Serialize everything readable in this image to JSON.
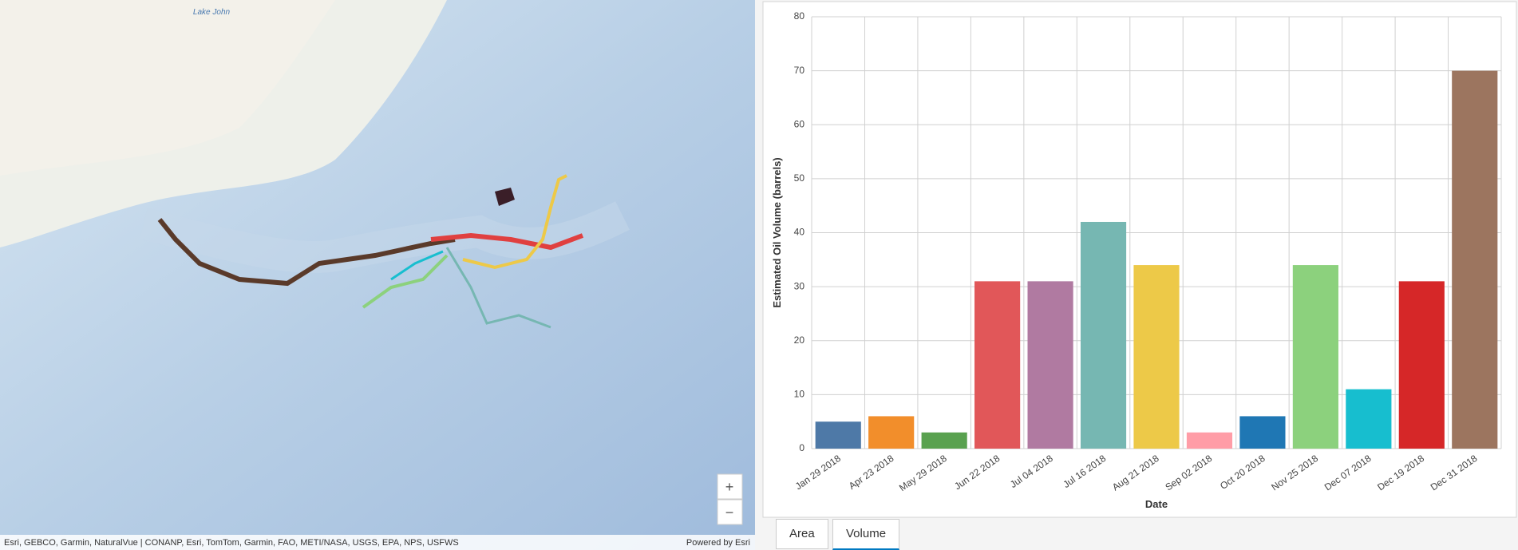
{
  "chart_data": {
    "type": "bar",
    "x_label": "Date",
    "y_label": "Estimated Oil Volume (barrels)",
    "categories": [
      "Jan 29 2018",
      "Apr 23 2018",
      "May 29 2018",
      "Jun 22 2018",
      "Jul 04 2018",
      "Jul 16 2018",
      "Aug 21 2018",
      "Sep 02 2018",
      "Oct 20 2018",
      "Nov 25 2018",
      "Dec 07 2018",
      "Dec 19 2018",
      "Dec 31 2018"
    ],
    "values": [
      5,
      6,
      3,
      31,
      31,
      42,
      34,
      3,
      6,
      34,
      11,
      31,
      70
    ],
    "colors": [
      "#4e79a7",
      "#f28e2b",
      "#59a14f",
      "#e15759",
      "#b07aa1",
      "#76b7b2",
      "#edc948",
      "#ff9da7",
      "#1f77b4",
      "#8cd17d",
      "#17becf",
      "#d62728",
      "#9c755f"
    ],
    "ylim": [
      0,
      80
    ],
    "yticks": [
      0,
      10,
      20,
      30,
      40,
      50,
      60,
      70,
      80
    ],
    "grid": true
  },
  "map": {
    "place_label": "Lake John",
    "attribution": "Esri, GEBCO, Garmin, NaturalVue | CONANP, Esri, TomTom, Garmin, FAO, METI/NASA, USGS, EPA, NPS, USFWS",
    "powered_by": "Powered by Esri",
    "zoom_in": "+",
    "zoom_out": "−"
  },
  "tabs": [
    "Area",
    "Volume"
  ]
}
